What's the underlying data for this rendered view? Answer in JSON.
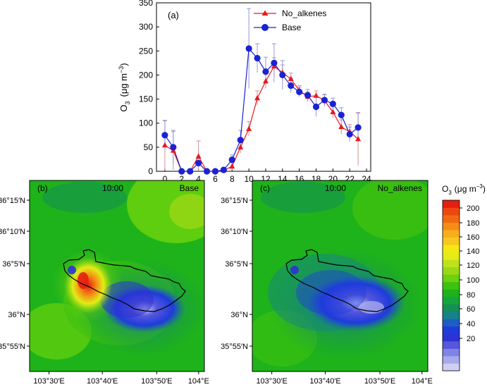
{
  "chart_data": [
    {
      "type": "line",
      "panel_label": "(a)",
      "ylabel_main": "O",
      "ylabel_sub": "3",
      "ylabel_unit_prefix": "(μg m",
      "ylabel_unit_exp": "−3",
      "ylabel_unit_suffix": ")",
      "xlim": [
        -1,
        24.5
      ],
      "ylim": [
        0,
        350
      ],
      "x_ticks": [
        "0",
        "2",
        "4",
        "6",
        "8",
        "10",
        "12",
        "14",
        "16",
        "18",
        "20",
        "22",
        "24"
      ],
      "y_ticks": [
        "0",
        "50",
        "100",
        "150",
        "200",
        "250",
        "300",
        "350"
      ],
      "legend_position": "top-right",
      "x": [
        0,
        1,
        2,
        3,
        4,
        5,
        6,
        7,
        8,
        9,
        10,
        11,
        12,
        13,
        14,
        15,
        16,
        17,
        18,
        19,
        20,
        21,
        22,
        23
      ],
      "series": [
        {
          "name": "No_alkenes",
          "color": "#e8191e",
          "marker": "triangle",
          "values": [
            54,
            43,
            0,
            0,
            31,
            0,
            0,
            2,
            10,
            50,
            88,
            152,
            187,
            218,
            205,
            192,
            168,
            155,
            157,
            147,
            123,
            92,
            82,
            67
          ],
          "error": [
            52,
            40,
            0,
            0,
            32,
            0,
            0,
            2,
            8,
            12,
            15,
            15,
            15,
            18,
            16,
            12,
            10,
            10,
            10,
            12,
            12,
            15,
            15,
            55
          ]
        },
        {
          "name": "Base",
          "color": "#1b22d4",
          "marker": "circle",
          "values": [
            75,
            50,
            0,
            0,
            17,
            0,
            0,
            3,
            24,
            65,
            255,
            235,
            207,
            225,
            200,
            178,
            165,
            158,
            134,
            148,
            140,
            117,
            77,
            91
          ],
          "error": [
            30,
            35,
            0,
            0,
            10,
            0,
            0,
            3,
            10,
            20,
            83,
            30,
            30,
            40,
            30,
            15,
            10,
            12,
            20,
            12,
            12,
            15,
            15,
            30
          ]
        }
      ]
    },
    {
      "type": "heatmap",
      "panel_label": "(b)",
      "time": "10:00",
      "case": "Base",
      "lat_ticks": [
        "36°15′N",
        "36°10′N",
        "36°5′N",
        "36°N",
        "35°55′N"
      ],
      "lon_ticks": [
        "103°30′E",
        "103°40′E",
        "103°50′E",
        "104°E"
      ]
    },
    {
      "type": "heatmap",
      "panel_label": "(c)",
      "time": "10:00",
      "case": "No_alkenes",
      "lat_ticks": [
        "36°15′N",
        "36°10′N",
        "36°5′N",
        "36°N",
        "35°55′N"
      ],
      "lon_ticks": [
        "103°30′E",
        "103°40′E",
        "103°50′E",
        "104°E"
      ]
    }
  ],
  "colorbar": {
    "title_main": "O",
    "title_sub": "3",
    "title_unit_prefix": "(μg m",
    "title_unit_exp": "−3",
    "title_unit_suffix": ")",
    "ticks": [
      "200",
      "180",
      "160",
      "140",
      "120",
      "100",
      "80",
      "60",
      "40",
      "20"
    ],
    "colors": [
      "#cfcff5",
      "#a7a9ec",
      "#7f83e3",
      "#5558dc",
      "#2d32d2",
      "#1f3bdb",
      "#1c5fc2",
      "#17818d",
      "#168f54",
      "#14a53c",
      "#1eb31a",
      "#3ec10f",
      "#6ad20e",
      "#9ad814",
      "#bde21c",
      "#e3ec15",
      "#f4e716",
      "#f6c81d",
      "#f7ad1c",
      "#f48c16",
      "#f06a12",
      "#ec4711",
      "#e4200f"
    ]
  }
}
